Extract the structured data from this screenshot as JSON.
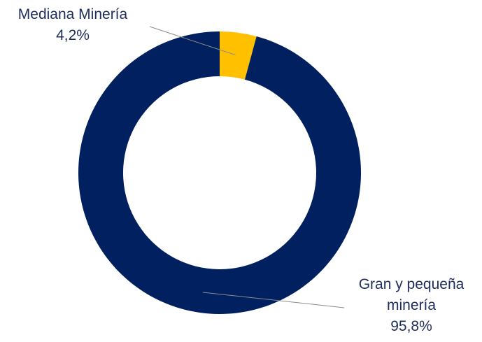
{
  "chart_data": {
    "type": "pie",
    "subtype": "donut",
    "slices": [
      {
        "name": "Mediana Minería",
        "value": 4.2,
        "label_name": "Mediana Minería",
        "label_value": "4,2%",
        "color": "#FFC000"
      },
      {
        "name": "Gran y pequeña minería",
        "value": 95.8,
        "label_name_line1": "Gran y pequeña",
        "label_name_line2": "minería",
        "label_value": "95,8%",
        "color": "#002060"
      }
    ],
    "legend": "none"
  },
  "colors": {
    "label_text": "#1F2D5A",
    "leader_line": "#8C8C8C",
    "background": "#FFFFFF"
  }
}
